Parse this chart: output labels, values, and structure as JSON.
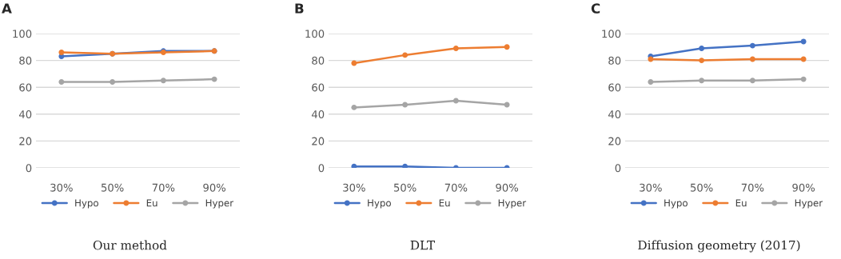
{
  "chart_data": [
    {
      "type": "line",
      "title": "A",
      "annotations": [
        "Our method"
      ],
      "categories": [
        "30%",
        "50%",
        "70%",
        "90%"
      ],
      "ylim": [
        0,
        100
      ],
      "yticks": [
        0,
        20,
        40,
        60,
        80,
        100
      ],
      "grid": "y",
      "legend": "bottom",
      "marker": "circle",
      "line_style": "solid",
      "series": [
        {
          "name": "Hypo",
          "color": "#4472c4",
          "values": [
            83,
            85,
            87,
            87
          ]
        },
        {
          "name": "Eu",
          "color": "#ed7d31",
          "values": [
            86,
            85,
            86,
            87
          ]
        },
        {
          "name": "Hyper",
          "color": "#a5a5a5",
          "values": [
            64,
            64,
            65,
            66
          ]
        }
      ]
    },
    {
      "type": "line",
      "title": "B",
      "annotations": [
        "DLT"
      ],
      "categories": [
        "30%",
        "50%",
        "70%",
        "90%"
      ],
      "ylim": [
        0,
        100
      ],
      "yticks": [
        0,
        20,
        40,
        60,
        80,
        100
      ],
      "grid": "y",
      "legend": "bottom",
      "marker": "circle",
      "line_style": "solid",
      "series": [
        {
          "name": "Hypo",
          "color": "#4472c4",
          "values": [
            1,
            1,
            0,
            0
          ]
        },
        {
          "name": "Eu",
          "color": "#ed7d31",
          "values": [
            78,
            84,
            89,
            90
          ]
        },
        {
          "name": "Hyper",
          "color": "#a5a5a5",
          "values": [
            45,
            47,
            50,
            47
          ]
        }
      ]
    },
    {
      "type": "line",
      "title": "C",
      "annotations": [
        "Diffusion geometry (2017)"
      ],
      "categories": [
        "30%",
        "50%",
        "70%",
        "90%"
      ],
      "ylim": [
        0,
        100
      ],
      "yticks": [
        0,
        20,
        40,
        60,
        80,
        100
      ],
      "grid": "y",
      "legend": "bottom",
      "marker": "circle",
      "line_style": "solid",
      "series": [
        {
          "name": "Hypo",
          "color": "#4472c4",
          "values": [
            83,
            89,
            91,
            94
          ]
        },
        {
          "name": "Eu",
          "color": "#ed7d31",
          "values": [
            81,
            80,
            81,
            81
          ]
        },
        {
          "name": "Hyper",
          "color": "#a5a5a5",
          "values": [
            64,
            65,
            65,
            66
          ]
        }
      ]
    }
  ]
}
